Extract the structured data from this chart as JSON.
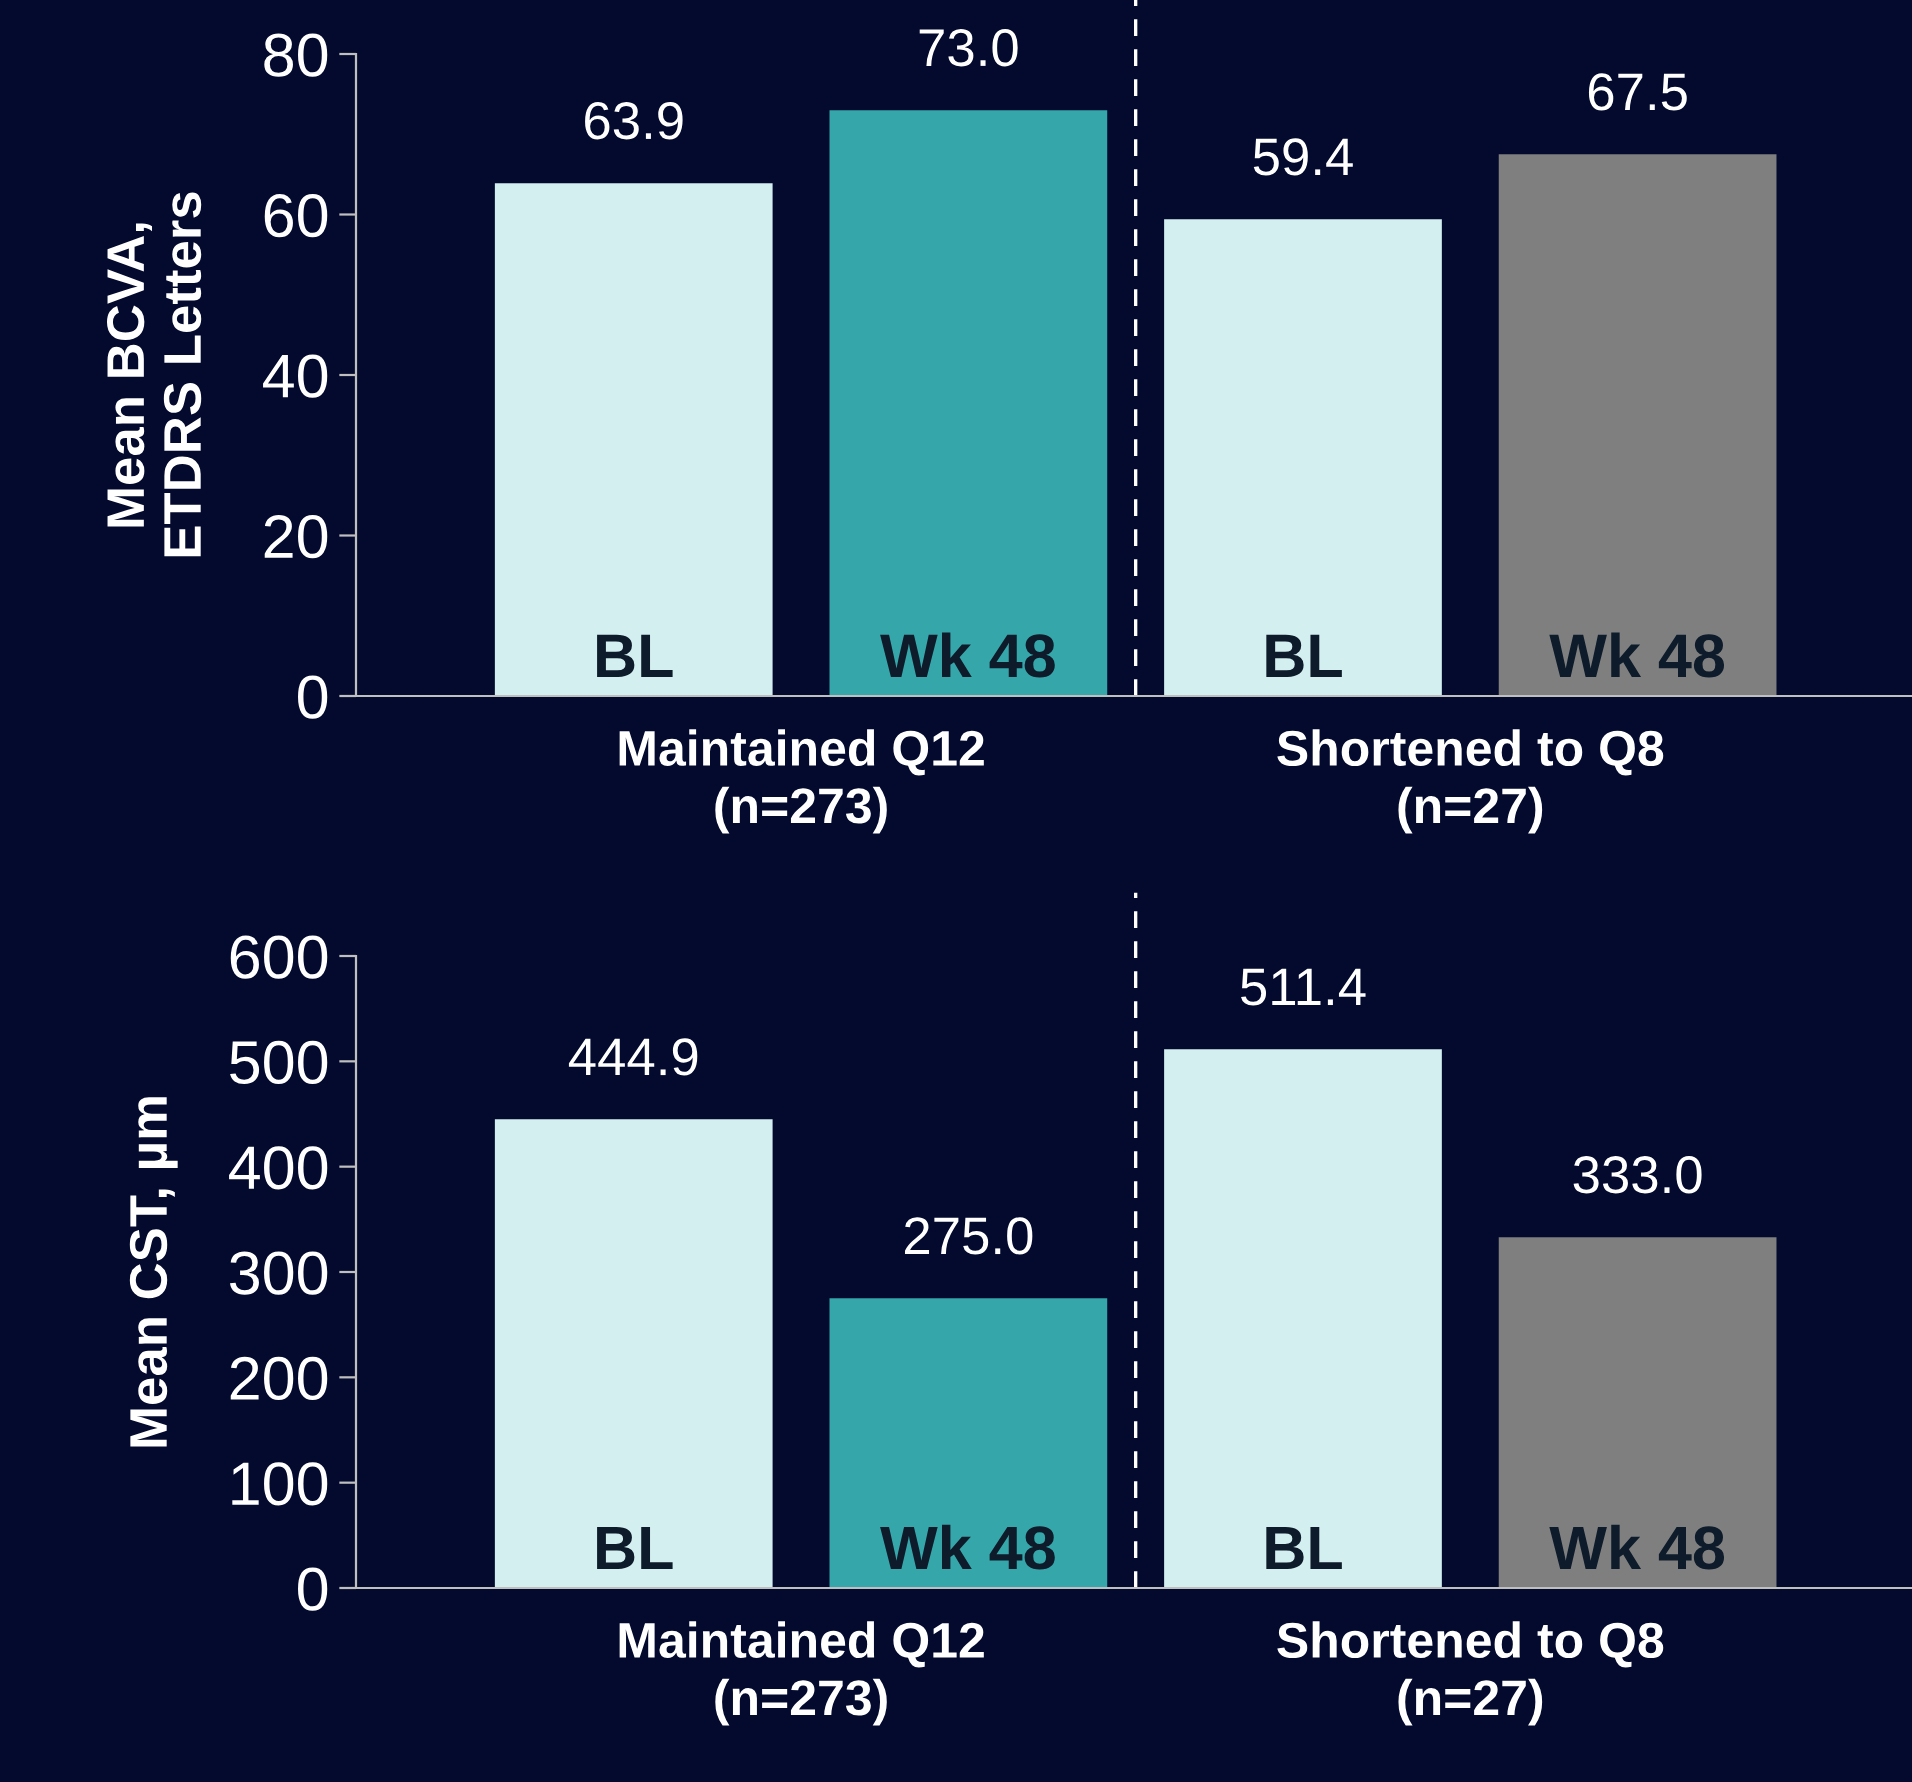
{
  "chart_data": [
    {
      "type": "bar",
      "ylabel": "Mean BCVA,\nETDRS Letters",
      "categories": [
        "BL",
        "Wk 48",
        "BL",
        "Wk 48"
      ],
      "values": [
        63.9,
        73.0,
        59.4,
        67.5
      ],
      "value_labels": [
        "63.9",
        "73.0",
        "59.4",
        "67.5"
      ],
      "colors": [
        "#d4eff0",
        "#35a7ab",
        "#d4eff0",
        "#7f7f7f"
      ],
      "ylim": [
        0,
        80
      ],
      "yticks": [
        0,
        20,
        40,
        60,
        80
      ],
      "grid": false,
      "legend": false,
      "annotations": [
        "Maintained Q12\n(n=273)",
        "Shortened to Q8\n(n=27)"
      ]
    },
    {
      "type": "bar",
      "ylabel": "Mean CST, µm",
      "categories": [
        "BL",
        "Wk 48",
        "BL",
        "Wk 48"
      ],
      "values": [
        444.9,
        275.0,
        511.4,
        333.0
      ],
      "value_labels": [
        "444.9",
        "275.0",
        "511.4",
        "333.0"
      ],
      "colors": [
        "#d4eff0",
        "#35a7ab",
        "#d4eff0",
        "#7f7f7f"
      ],
      "ylim": [
        0,
        600
      ],
      "yticks": [
        0,
        100,
        200,
        300,
        400,
        500,
        600
      ],
      "grid": false,
      "legend": false,
      "annotations": [
        "Maintained Q12\n(n=273)",
        "Shortened to Q8\n(n=27)"
      ]
    }
  ]
}
